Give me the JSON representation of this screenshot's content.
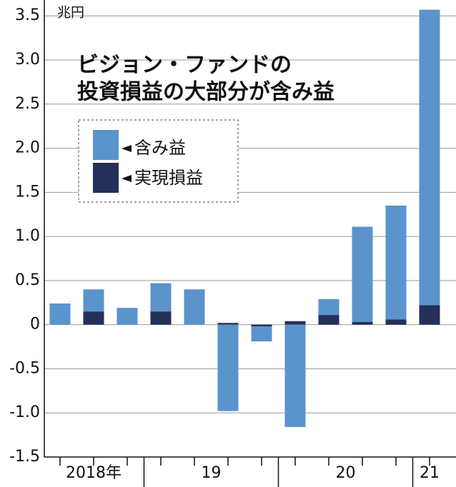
{
  "chart_data": {
    "type": "stacked_bar",
    "title": [
      "ビジョン・ファンドの",
      "投資損益の大部分が含み益"
    ],
    "unit_label": "兆円",
    "groups": [
      {
        "label": "2018年",
        "count": 3
      },
      {
        "label": "19",
        "count": 4
      },
      {
        "label": "20",
        "count": 4
      },
      {
        "label": "21",
        "count": 1
      }
    ],
    "series": [
      {
        "name": "実現損益",
        "color": "#243057",
        "values": [
          0,
          0.15,
          0,
          0.15,
          0,
          0.02,
          -0.02,
          0.04,
          0.11,
          0.03,
          0.06,
          0.22
        ]
      },
      {
        "name": "含み益",
        "color": "#5b93cc",
        "values": [
          0.24,
          0.25,
          0.19,
          0.32,
          0.4,
          -0.98,
          -0.17,
          -1.16,
          0.18,
          1.08,
          1.29,
          3.35
        ]
      }
    ],
    "ylim": [
      -1.5,
      3.68
    ],
    "yticks": [
      {
        "value": -1.5,
        "label": "-1.5"
      },
      {
        "value": -1,
        "label": "-1.0"
      },
      {
        "value": -0.5,
        "label": "-0.5"
      },
      0,
      0.5,
      {
        "value": 1,
        "label": "1.0"
      },
      1.5,
      {
        "value": 2,
        "label": "2.0"
      },
      2.5,
      {
        "value": 3,
        "label": "3.0"
      },
      3.5
    ],
    "grid": true
  }
}
